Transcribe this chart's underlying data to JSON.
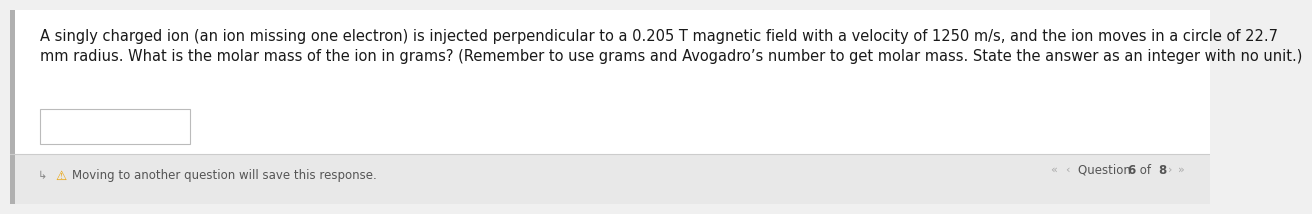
{
  "background_color": "#f0f0f0",
  "content_bg": "#f0f0f0",
  "top_section_bg": "#ffffff",
  "bottom_section_bg": "#e8e8e8",
  "question_text_line1": "A singly charged ion (an ion missing one electron) is injected perpendicular to a 0.205 T magnetic field with a velocity of 1250 m/s, and the ion moves in a circle of 22.7",
  "question_text_line2": "mm radius. What is the molar mass of the ion in grams? (Remember to use grams and Avogadro’s number to get molar mass. State the answer as an integer with no unit.)",
  "warning_text": "Moving to another question will save this response.",
  "question_nav": "Question ",
  "question_nav_bold": "6",
  "question_nav_mid": " of ",
  "question_nav_bold2": "8",
  "text_color": "#1a1a1a",
  "warning_color": "#555555",
  "nav_color": "#555555",
  "warning_icon_color": "#E8A000",
  "font_size_question": 10.5,
  "font_size_bottom": 8.5,
  "divider_color": "#cccccc",
  "left_border_color": "#c8c8c8",
  "answer_box_edge": "#bbbbbb",
  "nav_arrow_color": "#aaaaaa"
}
